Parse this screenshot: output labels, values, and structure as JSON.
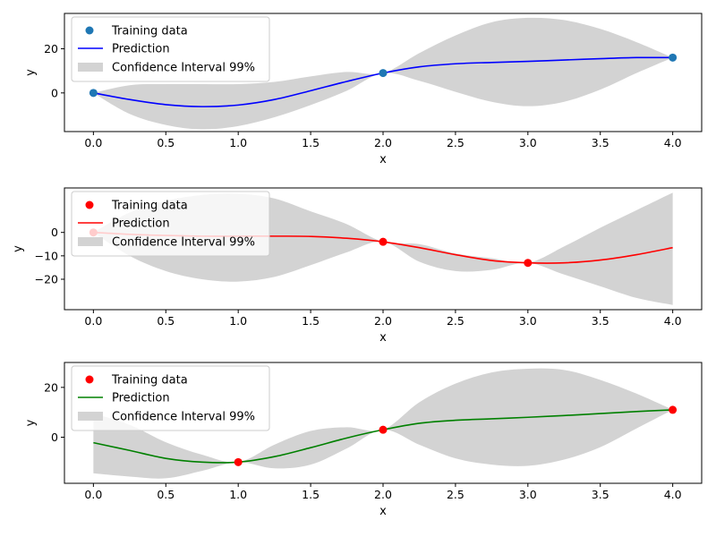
{
  "chart_data": [
    {
      "type": "line",
      "xlabel": "x",
      "ylabel": "y",
      "xlim": [
        -0.2,
        4.2
      ],
      "ylim": [
        -17.5,
        36
      ],
      "xticks": [
        0.0,
        0.5,
        1.0,
        1.5,
        2.0,
        2.5,
        3.0,
        3.5,
        4.0
      ],
      "xtick_labels": [
        "0.0",
        "0.5",
        "1.0",
        "1.5",
        "2.0",
        "2.5",
        "3.0",
        "3.5",
        "4.0"
      ],
      "yticks": [
        0,
        20
      ],
      "ytick_labels": [
        "0",
        "20"
      ],
      "legend_position": "top-left",
      "legend": [
        "Training data",
        "Prediction",
        "Confidence Interval 99%"
      ],
      "training_color": "#1f77b4",
      "prediction_color": "#0000ff",
      "band_color": "#d3d3d3",
      "training_points": {
        "x": [
          0,
          2,
          4
        ],
        "y": [
          0,
          9,
          16
        ]
      },
      "prediction": {
        "x": [
          0,
          0.25,
          0.5,
          0.75,
          1.0,
          1.25,
          1.5,
          1.75,
          2.0,
          2.25,
          2.5,
          2.75,
          3.0,
          3.25,
          3.5,
          3.75,
          4.0
        ],
        "y": [
          0,
          -3,
          -5.3,
          -6.2,
          -5.5,
          -3,
          1,
          5.2,
          9,
          11.8,
          13.2,
          13.8,
          14.3,
          14.9,
          15.5,
          16,
          16
        ]
      },
      "interval_upper": [
        0,
        3.5,
        4,
        4,
        4,
        5,
        7.5,
        9.5,
        9,
        18,
        26,
        32,
        34,
        33,
        29,
        23,
        16
      ],
      "interval_lower": [
        0,
        -9.5,
        -14.5,
        -16.5,
        -15,
        -11,
        -5.5,
        1,
        9,
        5.5,
        0.5,
        -4,
        -6,
        -4,
        1.5,
        9,
        16
      ]
    },
    {
      "type": "line",
      "xlabel": "x",
      "ylabel": "y",
      "xlim": [
        -0.2,
        4.2
      ],
      "ylim": [
        -33,
        19
      ],
      "xticks": [
        0.0,
        0.5,
        1.0,
        1.5,
        2.0,
        2.5,
        3.0,
        3.5,
        4.0
      ],
      "xtick_labels": [
        "0.0",
        "0.5",
        "1.0",
        "1.5",
        "2.0",
        "2.5",
        "3.0",
        "3.5",
        "4.0"
      ],
      "yticks": [
        0,
        -10,
        -20
      ],
      "ytick_labels": [
        "0",
        "−10",
        "−20"
      ],
      "legend_position": "top-left",
      "legend": [
        "Training data",
        "Prediction",
        "Confidence Interval 99%"
      ],
      "training_color": "#ff0000",
      "prediction_color": "#ff0000",
      "band_color": "#d3d3d3",
      "training_points": {
        "x": [
          0,
          2,
          3
        ],
        "y": [
          0,
          -4,
          -13
        ]
      },
      "prediction": {
        "x": [
          0,
          0.25,
          0.5,
          0.75,
          1.0,
          1.25,
          1.5,
          1.75,
          2.0,
          2.25,
          2.5,
          2.75,
          3.0,
          3.25,
          3.5,
          3.75,
          4.0
        ],
        "y": [
          0,
          -0.8,
          -1.3,
          -1.6,
          -1.6,
          -1.6,
          -1.7,
          -2.5,
          -4,
          -6.5,
          -9.5,
          -12,
          -13,
          -13,
          -11.8,
          -9.5,
          -6.5
        ]
      },
      "interval_upper": [
        0,
        8.5,
        13.5,
        16,
        16.5,
        14.5,
        9,
        3.5,
        -4,
        -5,
        -9,
        -11,
        -13,
        -6,
        2,
        9.5,
        17
      ],
      "interval_lower": [
        0,
        -10,
        -16.5,
        -20,
        -21,
        -19,
        -14,
        -8.5,
        -4,
        -12.5,
        -16.5,
        -16,
        -13,
        -18,
        -23,
        -28,
        -31
      ]
    },
    {
      "type": "line",
      "xlabel": "x",
      "ylabel": "y",
      "xlim": [
        -0.2,
        4.2
      ],
      "ylim": [
        -18.5,
        30
      ],
      "xticks": [
        0.0,
        0.5,
        1.0,
        1.5,
        2.0,
        2.5,
        3.0,
        3.5,
        4.0
      ],
      "xtick_labels": [
        "0.0",
        "0.5",
        "1.0",
        "1.5",
        "2.0",
        "2.5",
        "3.0",
        "3.5",
        "4.0"
      ],
      "yticks": [
        0,
        20
      ],
      "ytick_labels": [
        "0",
        "20"
      ],
      "legend_position": "top-left",
      "legend": [
        "Training data",
        "Prediction",
        "Confidence Interval 99%"
      ],
      "training_color": "#ff0000",
      "prediction_color": "#008000",
      "band_color": "#d3d3d3",
      "training_points": {
        "x": [
          1,
          2,
          4
        ],
        "y": [
          -10,
          3,
          11
        ]
      },
      "prediction": {
        "x": [
          0,
          0.25,
          0.5,
          0.75,
          1.0,
          1.25,
          1.5,
          1.75,
          2.0,
          2.25,
          2.5,
          2.75,
          3.0,
          3.25,
          3.5,
          3.75,
          4.0
        ],
        "y": [
          -2.2,
          -5.3,
          -8.5,
          -10,
          -10,
          -7.8,
          -4.2,
          -0.3,
          3,
          5.6,
          6.8,
          7.4,
          8,
          8.7,
          9.5,
          10.3,
          11
        ]
      },
      "interval_upper": [
        9.5,
        5,
        -2,
        -7,
        -10,
        -3,
        2.5,
        4,
        3,
        14,
        21.5,
        26,
        27.5,
        27,
        23,
        17.5,
        11
      ],
      "interval_lower": [
        -14.5,
        -15.8,
        -16.5,
        -13.5,
        -10,
        -12.5,
        -11,
        -4.5,
        3,
        -3,
        -8.5,
        -11,
        -11.5,
        -9,
        -4,
        3.5,
        11
      ]
    }
  ]
}
